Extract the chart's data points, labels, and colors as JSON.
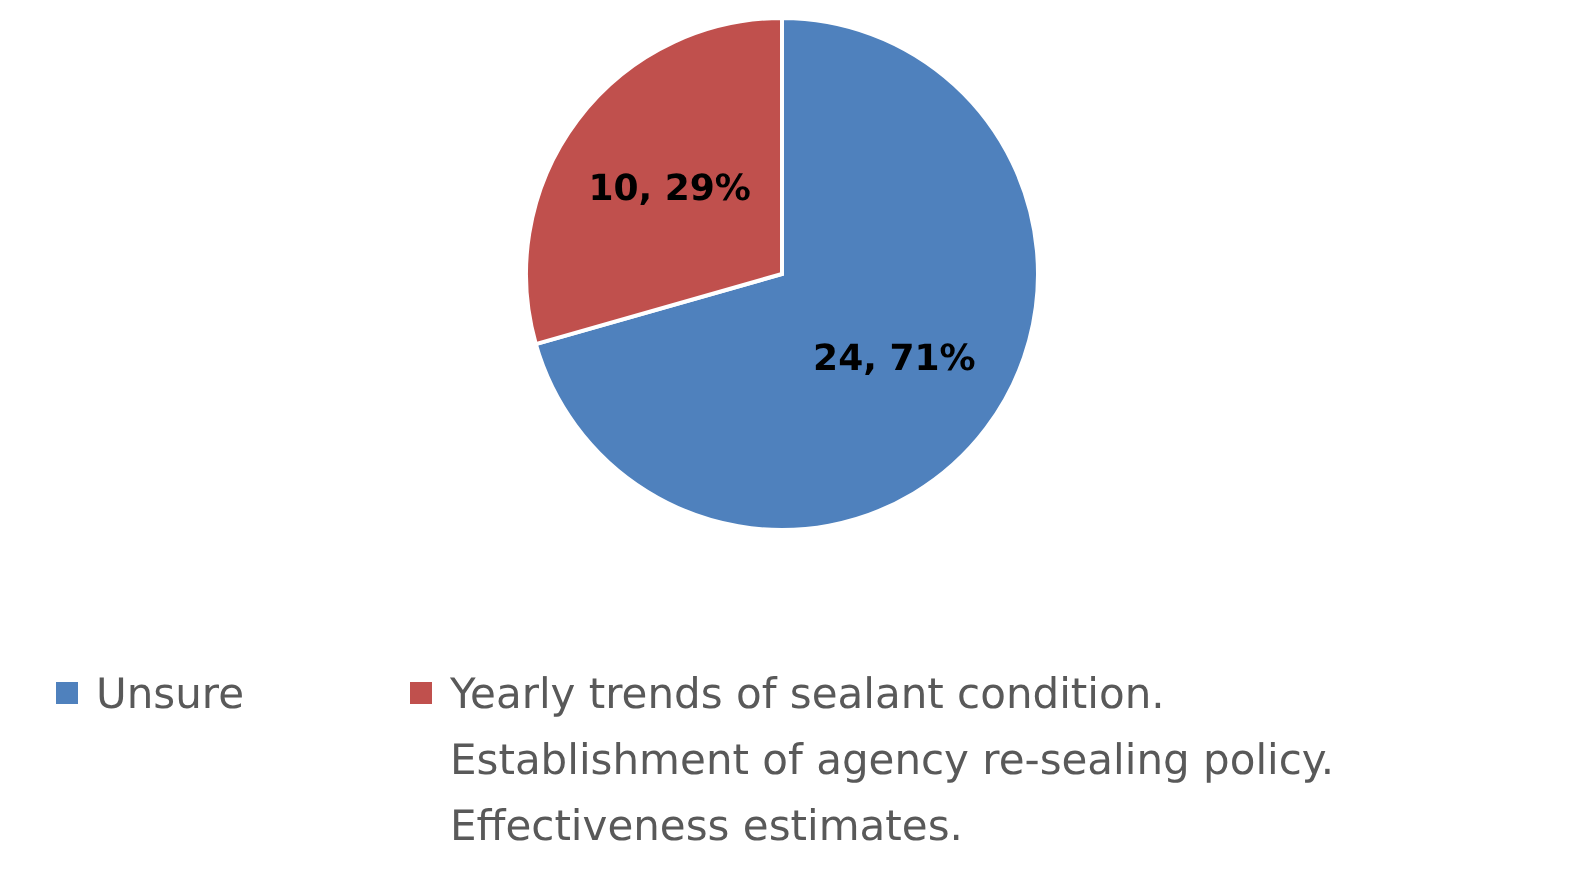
{
  "chart_data": {
    "type": "pie",
    "categories": [
      "Unsure",
      "Yearly trends of sealant condition.\nEstablishment of agency re-sealing policy.\nEffectiveness estimates."
    ],
    "values": [
      24,
      10
    ],
    "colors": [
      "#4f81bd",
      "#c0504d"
    ],
    "value_labels": [
      "24, 71%",
      "10, 29%"
    ],
    "legend": "bottom"
  }
}
